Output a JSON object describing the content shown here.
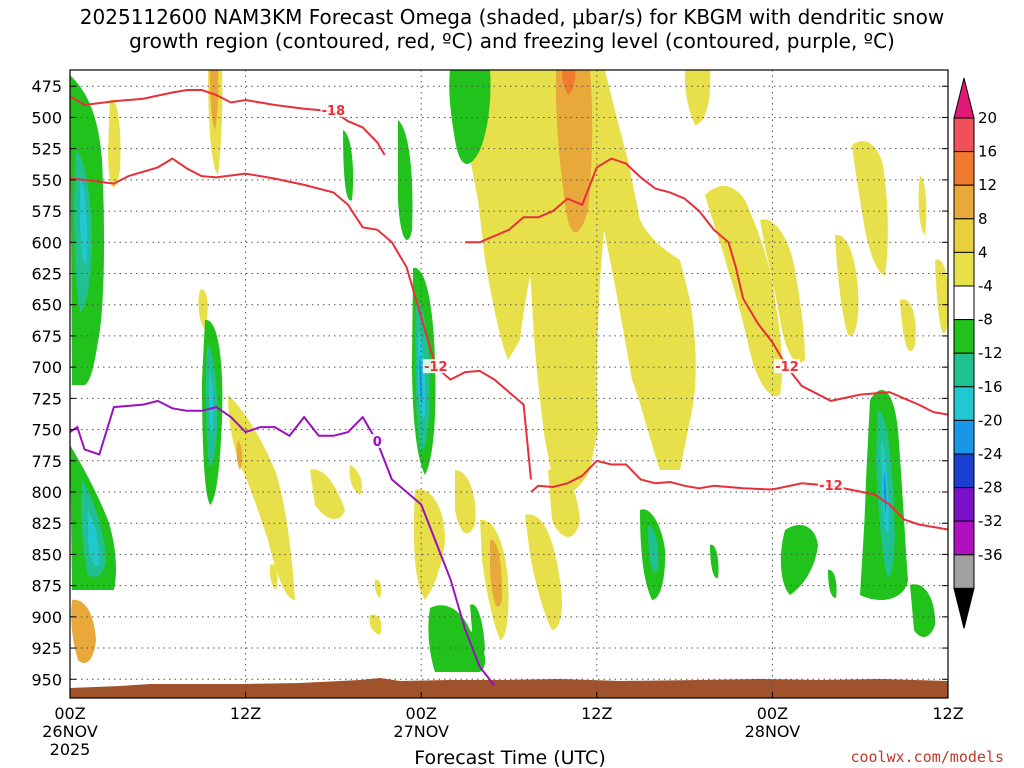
{
  "chart_data": {
    "type": "heatmap",
    "title_line1": "2025112600 NAM3KM Forecast Omega (shaded, μbar/s) for KBGM with dendritic snow",
    "title_line2": "growth region (contoured, red, ºC) and freezing level (contoured, purple, ºC)",
    "xlabel": "Forecast Time (UTC)",
    "credit": "coolwx.com/models",
    "x_hours_range": [
      0,
      60
    ],
    "x_ticks": [
      {
        "hour": 0,
        "line1": "00Z",
        "line2": "26NOV",
        "line3": "2025"
      },
      {
        "hour": 12,
        "line1": "12Z",
        "line2": "",
        "line3": ""
      },
      {
        "hour": 24,
        "line1": "00Z",
        "line2": "27NOV",
        "line3": ""
      },
      {
        "hour": 36,
        "line1": "12Z",
        "line2": "",
        "line3": ""
      },
      {
        "hour": 48,
        "line1": "00Z",
        "line2": "28NOV",
        "line3": ""
      },
      {
        "hour": 60,
        "line1": "12Z",
        "line2": "",
        "line3": ""
      }
    ],
    "y_range_mb": [
      462,
      965
    ],
    "y_ticks": [
      475,
      500,
      525,
      550,
      575,
      600,
      625,
      650,
      675,
      700,
      725,
      750,
      775,
      800,
      825,
      850,
      875,
      900,
      925,
      950
    ],
    "colorbar": {
      "labels": [
        "20",
        "16",
        "12",
        "8",
        "4",
        "-4",
        "-8",
        "-12",
        "-16",
        "-20",
        "-24",
        "-28",
        "-32",
        "-36"
      ],
      "colors": [
        "#f0505a",
        "#f07a2d",
        "#e8a83a",
        "#e8cf3c",
        "#e8e04a",
        "#ffffff",
        "#22c21c",
        "#20c090",
        "#22c8d0",
        "#1a96e8",
        "#1a3ed0",
        "#7a10c8",
        "#b010c0",
        "#a0a0a0"
      ],
      "top_arrow_color": "#e01878",
      "bottom_arrow_color": "#000000"
    },
    "contours": {
      "red": [
        {
          "label": "-18",
          "points": [
            [
              0,
              483
            ],
            [
              1,
              490
            ],
            [
              3,
              487
            ],
            [
              5,
              485
            ],
            [
              7,
              480
            ],
            [
              8,
              478
            ],
            [
              9,
              478
            ],
            [
              10,
              482
            ],
            [
              11,
              488
            ],
            [
              12,
              486
            ],
            [
              14,
              490
            ],
            [
              16,
              493
            ],
            [
              18,
              495
            ],
            [
              19,
              503
            ],
            [
              20,
              508
            ],
            [
              21,
              520
            ],
            [
              21.5,
              530
            ]
          ]
        },
        {
          "label": "-12",
          "points": [
            [
              0,
              549
            ],
            [
              1,
              550
            ],
            [
              3,
              553
            ],
            [
              4,
              547
            ],
            [
              6,
              540
            ],
            [
              7,
              533
            ],
            [
              8,
              541
            ],
            [
              9,
              547
            ],
            [
              10,
              548
            ],
            [
              12,
              545
            ],
            [
              14,
              549
            ],
            [
              16,
              554
            ],
            [
              18,
              560
            ],
            [
              19,
              570
            ],
            [
              20,
              588
            ],
            [
              21,
              590
            ],
            [
              22,
              600
            ],
            [
              23,
              620
            ],
            [
              24,
              660
            ],
            [
              25,
              700
            ],
            [
              26,
              710
            ],
            [
              27,
              704
            ],
            [
              28,
              703
            ],
            [
              29,
              710
            ],
            [
              30,
              720
            ],
            [
              31,
              730
            ],
            [
              31.5,
              790
            ]
          ]
        },
        {
          "label": "-12",
          "points": [
            [
              27,
              600
            ],
            [
              28,
              600
            ],
            [
              30,
              590
            ],
            [
              31,
              580
            ],
            [
              32,
              580
            ],
            [
              33,
              575
            ],
            [
              34,
              565
            ],
            [
              35,
              570
            ],
            [
              36,
              540
            ],
            [
              37,
              533
            ],
            [
              38,
              537
            ],
            [
              39,
              548
            ],
            [
              40,
              557
            ],
            [
              41,
              560
            ],
            [
              42,
              565
            ],
            [
              43,
              575
            ],
            [
              44,
              590
            ],
            [
              45,
              600
            ],
            [
              45.5,
              620
            ],
            [
              46,
              645
            ],
            [
              47,
              665
            ],
            [
              48,
              680
            ],
            [
              49,
              700
            ],
            [
              50,
              715
            ],
            [
              52,
              727
            ],
            [
              54,
              722
            ],
            [
              56,
              720
            ],
            [
              57,
              725
            ],
            [
              58,
              730
            ],
            [
              59,
              736
            ],
            [
              60,
              738
            ]
          ]
        },
        {
          "label": "-12",
          "points": [
            [
              31.5,
              800
            ],
            [
              32,
              795
            ],
            [
              33,
              796
            ],
            [
              34,
              793
            ],
            [
              35,
              787
            ],
            [
              36,
              775
            ],
            [
              37,
              778
            ],
            [
              38,
              778
            ],
            [
              39,
              790
            ],
            [
              40,
              793
            ],
            [
              41,
              792
            ],
            [
              42,
              795
            ],
            [
              43,
              797
            ],
            [
              44,
              795
            ],
            [
              46,
              797
            ],
            [
              48,
              798
            ],
            [
              50,
              793
            ],
            [
              52,
              795
            ],
            [
              55,
              802
            ],
            [
              56,
              810
            ],
            [
              57,
              822
            ],
            [
              58,
              826
            ],
            [
              59,
              828
            ],
            [
              60,
              830
            ]
          ]
        }
      ],
      "purple": [
        {
          "label": "0",
          "points": [
            [
              0,
              752
            ],
            [
              0.5,
              748
            ],
            [
              1,
              766
            ],
            [
              2,
              770
            ],
            [
              3,
              732
            ],
            [
              5,
              730
            ],
            [
              6,
              727
            ],
            [
              7,
              733
            ],
            [
              8,
              735
            ],
            [
              9,
              735
            ],
            [
              10,
              732
            ],
            [
              11,
              740
            ],
            [
              12,
              752
            ],
            [
              13,
              748
            ],
            [
              14,
              748
            ],
            [
              15,
              755
            ],
            [
              16,
              740
            ],
            [
              17,
              755
            ],
            [
              18,
              755
            ],
            [
              19,
              752
            ],
            [
              20,
              740
            ],
            [
              21,
              760
            ],
            [
              22,
              790
            ],
            [
              23,
              800
            ],
            [
              24,
              810
            ],
            [
              25,
              840
            ],
            [
              26,
              870
            ],
            [
              27,
              910
            ],
            [
              28,
              940
            ],
            [
              29,
              955
            ]
          ]
        }
      ]
    }
  }
}
